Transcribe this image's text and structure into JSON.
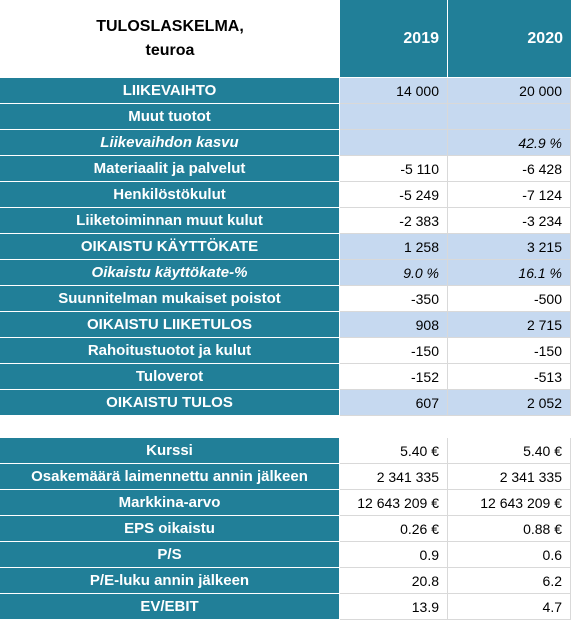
{
  "header": {
    "title": [
      "TULOSLASKELMA,",
      "teuroa"
    ],
    "years": [
      "2019",
      "2020"
    ]
  },
  "table": {
    "rows": [
      [
        "LIIKEVAIHTO",
        "14 000",
        "20 000"
      ],
      [
        "Muut tuotot",
        null,
        null
      ],
      [
        "Liikevaihdon kasvu",
        null,
        "42.9 %"
      ],
      [
        "Materiaalit ja palvelut",
        "-5 110",
        "-6 428"
      ],
      [
        "Henkilöstökulut",
        "-5 249",
        "-7 124"
      ],
      [
        "Liiketoiminnan muut kulut",
        "-2 383",
        "-3 234"
      ],
      [
        "OIKAISTU KÄYTTÖKATE",
        "1 258",
        "3 215"
      ],
      [
        "Oikaistu käyttökate-%",
        "9.0 %",
        "16.1 %"
      ],
      [
        "Suunnitelman mukaiset poistot",
        "-350",
        "-500"
      ],
      [
        "OIKAISTU LIIKETULOS",
        "908",
        "2 715"
      ],
      [
        "Rahoitustuotot ja kulut",
        "-150",
        "-150"
      ],
      [
        "Tuloverot",
        "-152",
        "-513"
      ],
      [
        "OIKAISTU TULOS",
        "607",
        "2 052"
      ]
    ]
  },
  "metrics": {
    "rows": [
      [
        "Kurssi",
        "5.40 €",
        "5.40 €"
      ],
      [
        "Osakemäärä laimennettu annin jälkeen",
        "2 341 335",
        "2 341 335"
      ],
      [
        "Markkina-arvo",
        "12 643 209 €",
        "12 643 209 €"
      ],
      [
        "EPS oikaistu",
        "0.26 €",
        "0.88 €"
      ],
      [
        "P/S",
        "0.9",
        "0.6"
      ],
      [
        "P/E-luku annin jälkeen",
        "20.8",
        "6.2"
      ],
      [
        "EV/EBIT",
        "13.9",
        "4.7"
      ]
    ]
  }
}
